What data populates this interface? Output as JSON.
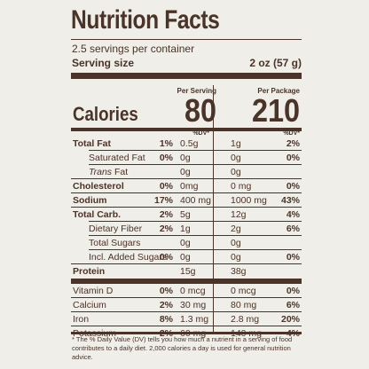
{
  "title": "Nutrition Facts",
  "servings": "2.5 servings per container",
  "serving_size_label": "Serving size",
  "serving_size_value": "2 oz (57 g)",
  "per_serving_label": "Per Serving",
  "per_package_label": "Per Package",
  "calories_label": "Calories",
  "calories_serving": "80",
  "calories_package": "210",
  "dv_label": "%DV*",
  "rows": [
    {
      "name": "Total Fat",
      "bold": true,
      "indent": false,
      "q1": "0.5g",
      "p1": "1%",
      "q2": "1g",
      "p2": "2%"
    },
    {
      "name": "Saturated Fat",
      "bold": false,
      "indent": true,
      "q1": "0g",
      "p1": "0%",
      "q2": "0g",
      "p2": "0%"
    },
    {
      "name": "Trans Fat",
      "bold": false,
      "indent": true,
      "q1": "0g",
      "p1": "",
      "q2": "0g",
      "p2": ""
    },
    {
      "name": "Cholesterol",
      "bold": true,
      "indent": false,
      "q1": "0mg",
      "p1": "0%",
      "q2": "0 mg",
      "p2": "0%"
    },
    {
      "name": "Sodium",
      "bold": true,
      "indent": false,
      "q1": "400 mg",
      "p1": "17%",
      "q2": "1000 mg",
      "p2": "43%"
    },
    {
      "name": "Total Carb.",
      "bold": true,
      "indent": false,
      "q1": "5g",
      "p1": "2%",
      "q2": "12g",
      "p2": "4%"
    },
    {
      "name": "Dietary Fiber",
      "bold": false,
      "indent": true,
      "q1": "1g",
      "p1": "2%",
      "q2": "2g",
      "p2": "6%"
    },
    {
      "name": "Total Sugars",
      "bold": false,
      "indent": true,
      "q1": "0g",
      "p1": "",
      "q2": "0g",
      "p2": ""
    },
    {
      "name": "Incl. Added Sugars",
      "bold": false,
      "indent": true,
      "q1": "0g",
      "p1": "0%",
      "q2": "0g",
      "p2": "0%"
    },
    {
      "name": "Protein",
      "bold": true,
      "indent": false,
      "q1": "15g",
      "p1": "",
      "q2": "38g",
      "p2": ""
    },
    {
      "name": "Vitamin D",
      "bold": false,
      "indent": false,
      "q1": "0 mcg",
      "p1": "0%",
      "q2": "0 mcg",
      "p2": "0%"
    },
    {
      "name": "Calcium",
      "bold": false,
      "indent": false,
      "q1": "30 mg",
      "p1": "2%",
      "q2": "80 mg",
      "p2": "6%"
    },
    {
      "name": "Iron",
      "bold": false,
      "indent": false,
      "q1": "1.3 mg",
      "p1": "8%",
      "q2": "2.8 mg",
      "p2": "20%"
    },
    {
      "name": "Potassium",
      "bold": false,
      "indent": false,
      "q1": "60 mg",
      "p1": "2%",
      "q2": "140 mg",
      "p2": "4%"
    }
  ],
  "footnote": "* The % Daily Value (DV) tells you how much a nutrient in a serving of food contributes to a daily diet. 2,000 calories a day is used for general nutrition advice."
}
